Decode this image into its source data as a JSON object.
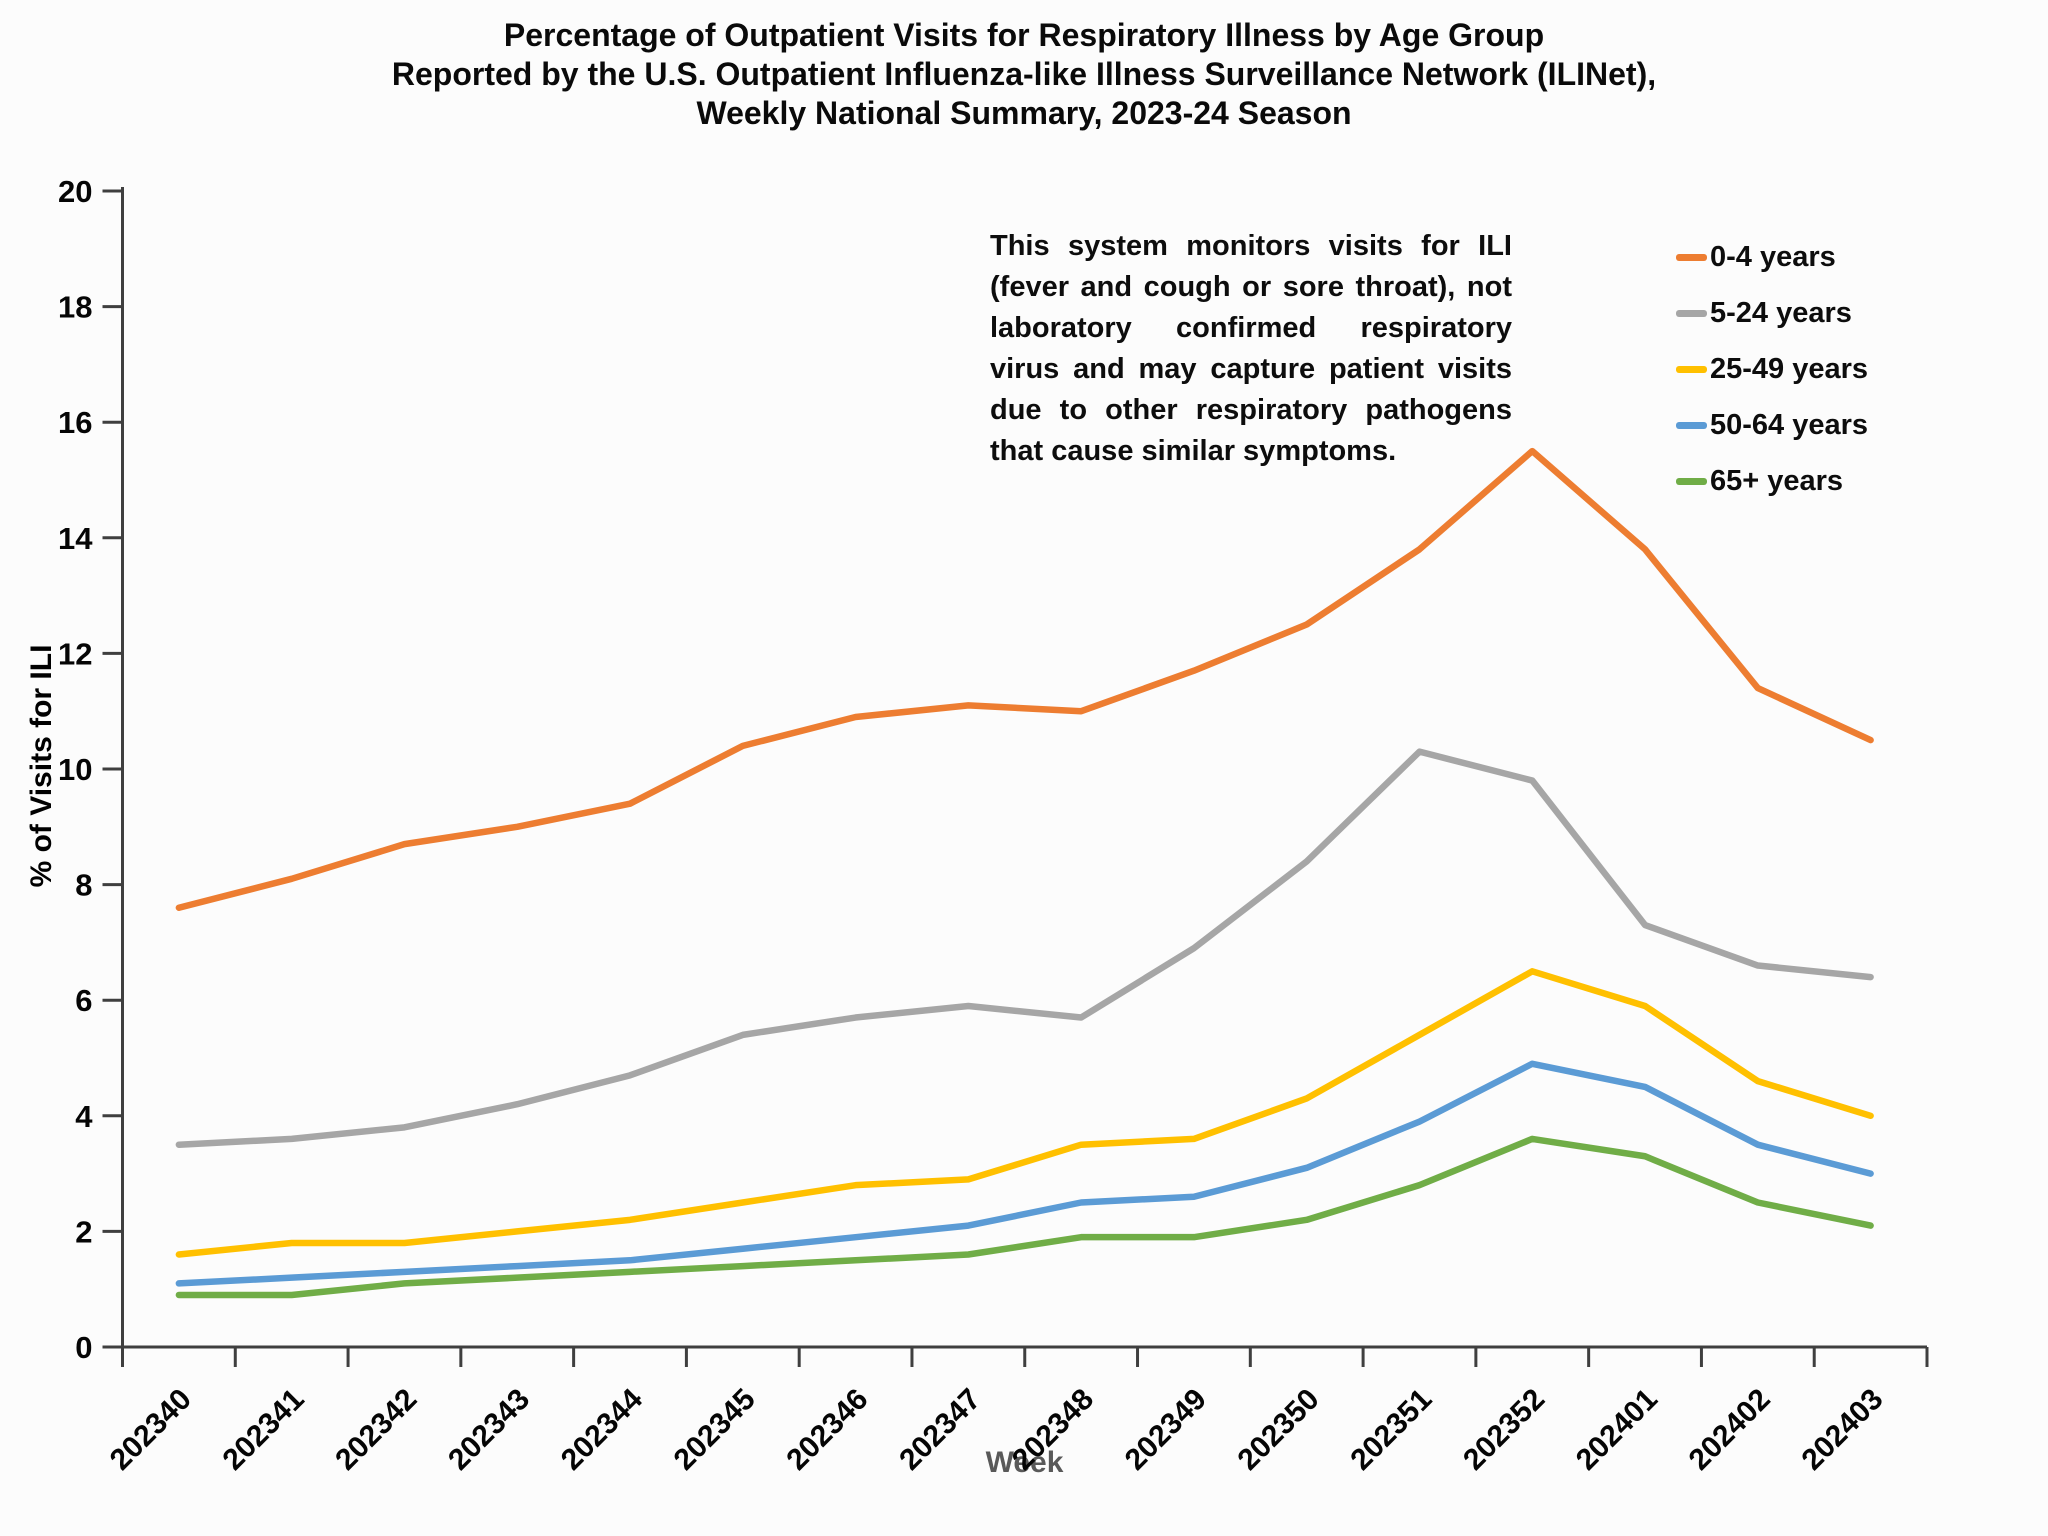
{
  "title": {
    "line1": "Percentage of Outpatient Visits for Respiratory Illness by Age Group",
    "line2": "Reported by the U.S. Outpatient Influenza-like Illness Surveillance Network (ILINet),",
    "line3": "Weekly National Summary, 2023-24 Season"
  },
  "annotation": "This system monitors visits for ILI (fever and cough or sore throat), not laboratory confirmed respiratory virus and may capture patient visits due to other respiratory pathogens that cause similar symptoms.",
  "chart_data": {
    "type": "line",
    "categories": [
      "202340",
      "202341",
      "202342",
      "202343",
      "202344",
      "202345",
      "202346",
      "202347",
      "202348",
      "202349",
      "202350",
      "202351",
      "202352",
      "202401",
      "202402",
      "202403"
    ],
    "series": [
      {
        "name": "0-4 years",
        "color": "#ED7D31",
        "values": [
          7.6,
          8.1,
          8.7,
          9.0,
          9.4,
          10.4,
          10.9,
          11.1,
          11.0,
          11.7,
          12.5,
          13.8,
          15.5,
          13.8,
          11.4,
          10.5
        ]
      },
      {
        "name": "5-24 years",
        "color": "#A6A6A6",
        "values": [
          3.5,
          3.6,
          3.8,
          4.2,
          4.7,
          5.4,
          5.7,
          5.9,
          5.7,
          6.9,
          8.4,
          10.3,
          9.8,
          7.3,
          6.6,
          6.4
        ]
      },
      {
        "name": "25-49 years",
        "color": "#FFC000",
        "values": [
          1.6,
          1.8,
          1.8,
          2.0,
          2.2,
          2.5,
          2.8,
          2.9,
          3.5,
          3.6,
          4.3,
          5.4,
          6.5,
          5.9,
          4.6,
          4.0
        ]
      },
      {
        "name": "50-64 years",
        "color": "#5B9BD5",
        "values": [
          1.1,
          1.2,
          1.3,
          1.4,
          1.5,
          1.7,
          1.9,
          2.1,
          2.5,
          2.6,
          3.1,
          3.9,
          4.9,
          4.5,
          3.5,
          3.0
        ]
      },
      {
        "name": "65+ years",
        "color": "#70AD47",
        "values": [
          0.9,
          0.9,
          1.1,
          1.2,
          1.3,
          1.4,
          1.5,
          1.6,
          1.9,
          1.9,
          2.2,
          2.8,
          3.6,
          3.3,
          2.5,
          2.1
        ]
      }
    ],
    "xlabel": "Week",
    "ylabel": "% of Visits for ILI",
    "ylim": [
      0,
      20
    ],
    "ytick_step": 2,
    "grid": false,
    "legend_position": "right",
    "axis_color": "#3f3f3f"
  }
}
